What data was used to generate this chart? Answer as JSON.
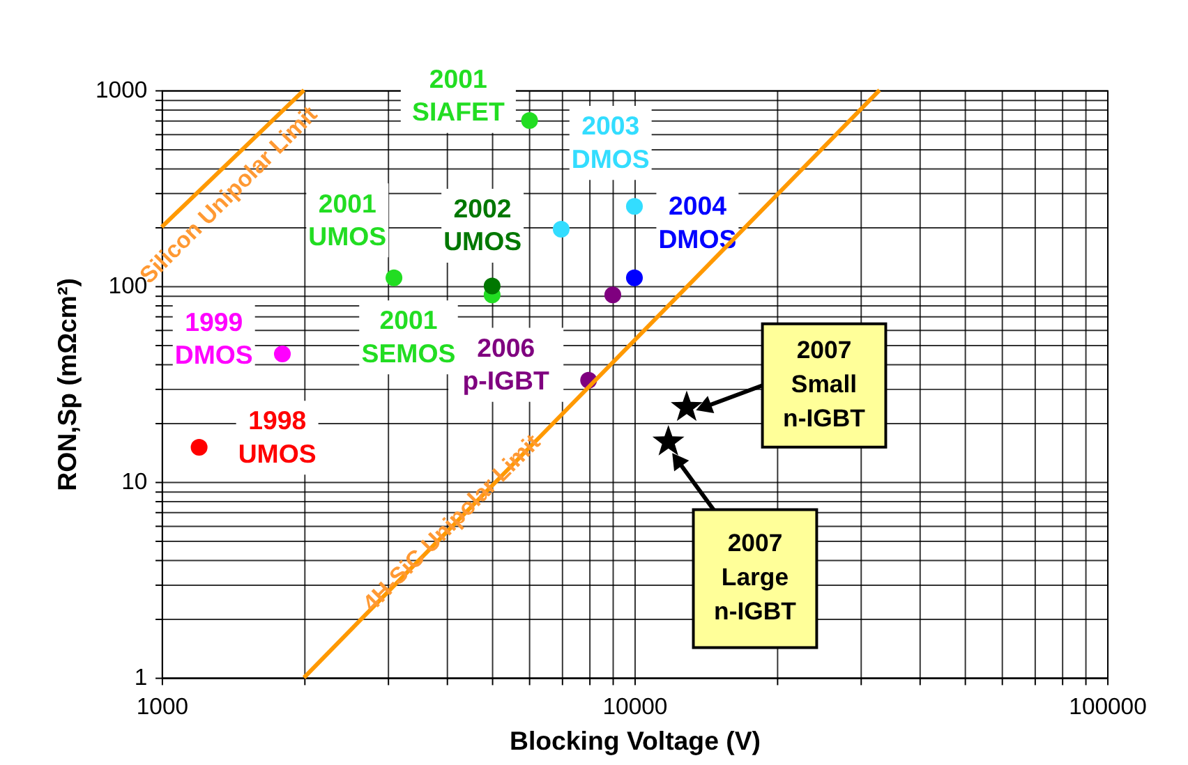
{
  "chart_data": {
    "type": "scatter",
    "xlabel": "Blocking Voltage (V)",
    "ylabel": "RON,Sp (mΩcm²)",
    "log": "xy",
    "xlim": [
      1000,
      100000
    ],
    "ylim": [
      1,
      1000
    ],
    "xticks": [
      1000,
      {
        "value": 2000,
        "label": null
      },
      {
        "value": 3000,
        "label": null
      },
      {
        "value": 4000,
        "label": null
      },
      {
        "value": 5000,
        "label": null
      },
      {
        "value": 6000,
        "label": null
      },
      {
        "value": 7000,
        "label": null
      },
      {
        "value": 8000,
        "label": null
      },
      {
        "value": 9000,
        "label": null
      },
      10000,
      {
        "value": 20000,
        "label": null
      },
      {
        "value": 30000,
        "label": null
      },
      {
        "value": 40000,
        "label": null
      },
      {
        "value": 50000,
        "label": null
      },
      {
        "value": 60000,
        "label": null
      },
      {
        "value": 70000,
        "label": null
      },
      {
        "value": 80000,
        "label": null
      },
      {
        "value": 90000,
        "label": null
      },
      100000
    ],
    "yticks": [
      1,
      {
        "value": 2,
        "label": null
      },
      {
        "value": 3,
        "label": null
      },
      {
        "value": 4,
        "label": null
      },
      {
        "value": 5,
        "label": null
      },
      {
        "value": 6,
        "label": null
      },
      {
        "value": 7,
        "label": null
      },
      {
        "value": 8,
        "label": null
      },
      {
        "value": 9,
        "label": null
      },
      10,
      {
        "value": 20,
        "label": null
      },
      {
        "value": 30,
        "label": null
      },
      {
        "value": 40,
        "label": null
      },
      {
        "value": 50,
        "label": null
      },
      {
        "value": 60,
        "label": null
      },
      {
        "value": 70,
        "label": null
      },
      {
        "value": 80,
        "label": null
      },
      {
        "value": 90,
        "label": null
      },
      100,
      {
        "value": 200,
        "label": null
      },
      {
        "value": 300,
        "label": null
      },
      {
        "value": 400,
        "label": null
      },
      {
        "value": 500,
        "label": null
      },
      {
        "value": 600,
        "label": null
      },
      {
        "value": 700,
        "label": null
      },
      {
        "value": 800,
        "label": null
      },
      {
        "value": 900,
        "label": null
      },
      1000
    ],
    "grid": true,
    "marker": "circle",
    "series": [
      {
        "name": "1998 UMOS",
        "color": "#ff0000",
        "x": [
          1200
        ],
        "values": [
          15
        ]
      },
      {
        "name": "1999 DMOS",
        "color": "#ff00ff",
        "x": [
          1800
        ],
        "values": [
          45
        ]
      },
      {
        "name": "2001 UMOS",
        "color": "#22dd22",
        "x": [
          3100
        ],
        "values": [
          110
        ]
      },
      {
        "name": "2001 SEMOS",
        "color": "#22dd22",
        "x": [
          5000
        ],
        "values": [
          90
        ]
      },
      {
        "name": "2002 UMOS",
        "color": "#007700",
        "x": [
          5000
        ],
        "values": [
          100
        ]
      },
      {
        "name": "2001 SIAFET",
        "color": "#22dd22",
        "x": [
          6000
        ],
        "values": [
          700
        ]
      },
      {
        "name": "2003 DMOS",
        "color": "#33ddff",
        "x": [
          7000,
          10000
        ],
        "values": [
          195,
          255
        ]
      },
      {
        "name": "2004 DMOS",
        "color": "#0000ff",
        "x": [
          10000
        ],
        "values": [
          110
        ]
      },
      {
        "name": "2006 p-IGBT",
        "color": "#7f007f",
        "x": [
          9000,
          8000
        ],
        "values": [
          90,
          33
        ]
      },
      {
        "color": "#000000",
        "marker": "star",
        "x": [
          12900,
          11800
        ],
        "values": [
          24,
          16
        ]
      },
      {
        "name": "Silicon Unipolar Limit",
        "type": "line",
        "color": "#ff9900",
        "marker": "none",
        "x": [
          1000,
          2000
        ],
        "values": [
          200,
          1000
        ]
      },
      {
        "name": "4H-SiC Unipolar Limit",
        "type": "line",
        "color": "#ff9900",
        "marker": "none",
        "x": [
          2000,
          33000
        ],
        "values": [
          1,
          1000
        ]
      }
    ],
    "annotations": [
      {
        "text": "2007 Small n-IGBT",
        "x": 14000,
        "y": 24
      },
      {
        "text": "2007 Large n-IGBT",
        "x": 12300,
        "y": 13
      }
    ]
  }
}
